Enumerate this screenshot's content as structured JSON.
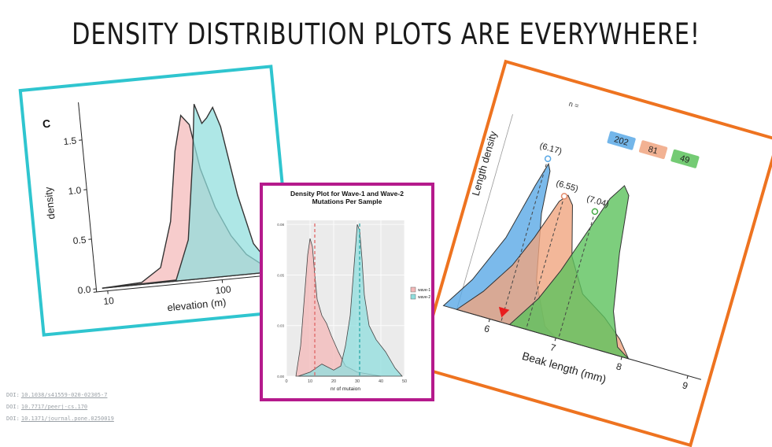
{
  "slide": {
    "title": "DENSITY DISTRIBUTION PLOTS ARE EVERYWHERE!",
    "references": [
      {
        "label": "DOI:",
        "text": "10.1038/s41559-020-02305-7"
      },
      {
        "label": "DOI:",
        "text": "10.7717/peerj-cs.170"
      },
      {
        "label": "DOI:",
        "text": "10.1371/journal.pone.0250019"
      }
    ]
  },
  "colors": {
    "frame_elevation": "#2fc5cf",
    "frame_wave": "#b51a8c",
    "frame_beak": "#ee7320",
    "pink": "#f4b8b8",
    "teal": "#8fdedd",
    "blue": "#5aa9e6",
    "salmon": "#f0a580",
    "green": "#5cc25c"
  },
  "chart_data": [
    {
      "type": "area",
      "panel_label": "C",
      "xlabel": "elevation (m)",
      "ylabel": "density",
      "x_scale": "log",
      "xlim": [
        8,
        300
      ],
      "ylim": [
        0,
        1.8
      ],
      "x_ticks": [
        10,
        100
      ],
      "x_tick_labels": [
        "10",
        "100"
      ],
      "y_ticks": [
        0.0,
        0.5,
        1.0,
        1.5
      ],
      "y_tick_labels": [
        "0.0",
        "0.5",
        "1.0",
        "1.5"
      ],
      "series": [
        {
          "color": "#f4b8b8",
          "x": [
            9,
            20,
            30,
            40,
            50,
            60,
            70,
            80,
            100,
            130,
            170,
            230,
            300
          ],
          "y": [
            0.0,
            0.02,
            0.15,
            0.6,
            1.3,
            1.65,
            1.55,
            1.1,
            0.7,
            0.4,
            0.2,
            0.08,
            0.03
          ]
        },
        {
          "color": "#8fdedd",
          "x": [
            9,
            40,
            55,
            70,
            80,
            90,
            100,
            115,
            130,
            160,
            200,
            260,
            300
          ],
          "y": [
            0.0,
            0.01,
            0.4,
            1.2,
            1.75,
            1.55,
            1.6,
            1.7,
            1.5,
            0.8,
            0.3,
            0.1,
            0.05
          ]
        }
      ]
    },
    {
      "type": "area",
      "title": "Density Plot for Wave-1 and Wave-2\nMutations Per Sample",
      "title_lines": [
        "Density Plot for Wave-1 and Wave-2",
        "Mutations Per Sample"
      ],
      "xlabel": "nr of mutaion",
      "ylabel": "",
      "xlim": [
        0,
        50
      ],
      "ylim": [
        0,
        0.077
      ],
      "x_ticks": [
        0,
        10,
        20,
        30,
        40,
        50
      ],
      "x_tick_labels": [
        "0",
        "10",
        "20",
        "30",
        "40",
        "50"
      ],
      "y_ticks": [
        0.0,
        0.025,
        0.05,
        0.075
      ],
      "y_tick_labels": [
        "0.00",
        "0.03",
        "0.05",
        "0.08"
      ],
      "legend": {
        "position": "right",
        "entries": [
          "wave-1",
          "wave-2"
        ]
      },
      "series": [
        {
          "name": "wave-1",
          "color": "#f4b8b8",
          "mean": 12,
          "x": [
            4,
            6,
            8,
            9,
            10,
            11,
            12,
            13,
            15,
            17,
            19,
            22,
            25,
            30,
            35,
            40
          ],
          "y": [
            0.0,
            0.015,
            0.045,
            0.06,
            0.068,
            0.064,
            0.05,
            0.038,
            0.03,
            0.026,
            0.02,
            0.012,
            0.005,
            0.002,
            0.001,
            0.0
          ]
        },
        {
          "name": "wave-2",
          "color": "#8fdedd",
          "mean": 31,
          "x": [
            5,
            10,
            15,
            20,
            23,
            25,
            27,
            29,
            30,
            31,
            32,
            33,
            35,
            38,
            42,
            46,
            49
          ],
          "y": [
            0.0,
            0.002,
            0.006,
            0.003,
            0.005,
            0.015,
            0.03,
            0.06,
            0.075,
            0.072,
            0.058,
            0.04,
            0.025,
            0.018,
            0.012,
            0.004,
            0.0
          ]
        }
      ]
    },
    {
      "type": "area",
      "xlabel": "Beak length (mm)",
      "ylabel": "Length density",
      "xlim": [
        5.5,
        9.2
      ],
      "x_ticks": [
        6,
        7,
        8,
        9
      ],
      "x_tick_labels": [
        "6",
        "7",
        "8",
        "9"
      ],
      "n_label": "n =",
      "series": [
        {
          "color": "#5aa9e6",
          "n": "202",
          "mean": 6.17,
          "mean_label": "(6.17)",
          "x": [
            5.3,
            5.6,
            5.9,
            6.1,
            6.2,
            6.25,
            6.3,
            6.5,
            6.8,
            7.0
          ],
          "y": [
            0.0,
            0.2,
            0.5,
            0.85,
            1.0,
            0.96,
            0.7,
            0.3,
            0.05,
            0.0
          ]
        },
        {
          "color": "#f0a580",
          "n": "81",
          "mean": 6.55,
          "mean_label": "(6.55)",
          "x": [
            5.5,
            5.8,
            6.1,
            6.3,
            6.5,
            6.6,
            6.7,
            6.9,
            7.2,
            7.6,
            7.9,
            8.1
          ],
          "y": [
            0.0,
            0.15,
            0.35,
            0.55,
            0.8,
            0.85,
            0.8,
            0.5,
            0.3,
            0.2,
            0.1,
            0.0
          ]
        },
        {
          "color": "#5cc25c",
          "n": "49",
          "mean": 7.04,
          "mean_label": "(7.04)",
          "x": [
            6.3,
            6.6,
            6.8,
            7.0,
            7.2,
            7.35,
            7.45,
            7.55,
            7.7,
            7.9,
            8.1
          ],
          "y": [
            0.0,
            0.2,
            0.4,
            0.65,
            0.9,
            1.0,
            0.95,
            0.6,
            0.25,
            0.05,
            0.0
          ]
        }
      ]
    }
  ]
}
